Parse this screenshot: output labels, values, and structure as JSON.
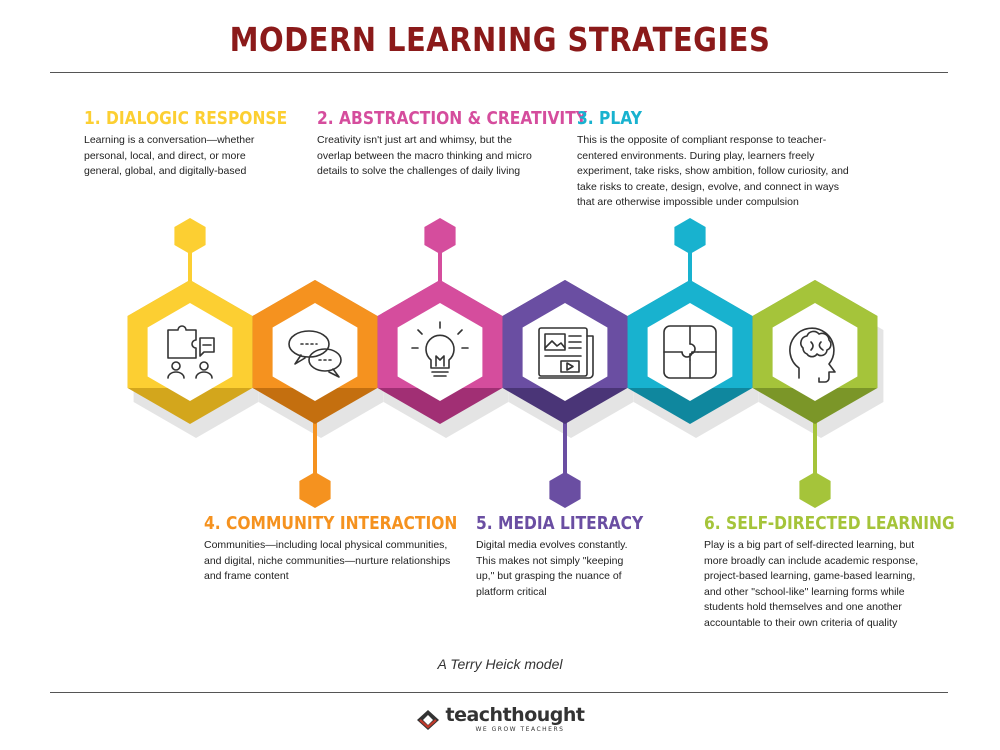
{
  "header": {
    "title": "MODERN LEARNING STRATEGIES",
    "title_color": "#8b1a1a"
  },
  "strategies": [
    {
      "title": "1. DIALOGIC RESPONSE",
      "description": "Learning is a conversation—whether personal, local, and direct, or more general, global, and digitally-based",
      "color": "#fccf32",
      "dark_color": "#d3a61c",
      "icon": "puzzle-dialogue-icon"
    },
    {
      "title": "2. ABSTRACTION & CREATIVITY",
      "description": "Creativity isn't just art and whimsy, but the overlap between the macro thinking and micro details to solve the challenges of daily living",
      "color": "#d54d9d",
      "dark_color": "#a12f74",
      "icon": "lightbulb-icon"
    },
    {
      "title": "3. PLAY",
      "description": "This is the opposite of compliant response to teacher-centered environments. During play, learners freely experiment, take risks, show ambition, follow curiosity, and take risks to create, design, evolve, and connect in ways that are otherwise impossible under compulsion",
      "color": "#18b2cf",
      "dark_color": "#0f879e",
      "icon": "puzzle-pieces-icon"
    },
    {
      "title": "4. COMMUNITY INTERACTION",
      "description": "Communities—including local physical communities, and digital, niche communities—nurture relationships and frame content",
      "color": "#f5921f",
      "dark_color": "#c46f0f",
      "icon": "speech-bubbles-icon"
    },
    {
      "title": "5. MEDIA LITERACY",
      "description": "Digital media evolves constantly. This makes not simply \"keeping up,\" but grasping the nuance of platform critical",
      "color": "#6a4ea2",
      "dark_color": "#4a3577",
      "icon": "newspaper-icon"
    },
    {
      "title": "6. SELF-DIRECTED LEARNING",
      "description": "Play is a big part of self-directed learning, but more broadly can include academic response, project-based learning, game-based learning, and other \"school-like\" learning forms while students hold themselves and one another accountable to their own criteria of quality",
      "color": "#a5c43a",
      "dark_color": "#7b9628",
      "icon": "brain-head-icon"
    }
  ],
  "hex_order": [
    0,
    3,
    1,
    4,
    2,
    5
  ],
  "footer": {
    "credit": "A Terry Heick model",
    "brand_name": "teachthought",
    "brand_tagline": "WE GROW TEACHERS",
    "brand_color": "#333333"
  }
}
